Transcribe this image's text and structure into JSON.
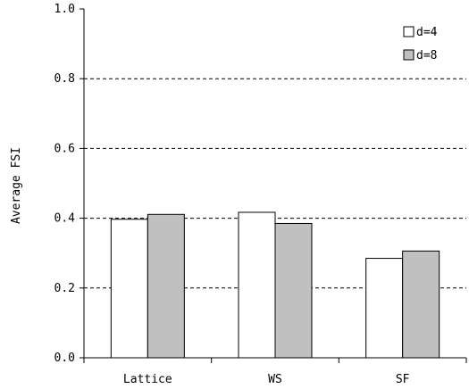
{
  "chart_data": {
    "type": "bar",
    "title": "",
    "xlabel": "",
    "ylabel": "Average FSI",
    "categories": [
      "Lattice",
      "WS",
      "SF"
    ],
    "series": [
      {
        "name": "d=4",
        "values": [
          0.397,
          0.417,
          0.285
        ],
        "color": "#ffffff"
      },
      {
        "name": "d=8",
        "values": [
          0.411,
          0.385,
          0.306
        ],
        "color": "#c0c0c0"
      }
    ],
    "ylim": [
      0.0,
      1.0
    ],
    "yticks": [
      0.0,
      0.2,
      0.4,
      0.6,
      0.8,
      1.0
    ],
    "ytick_labels": [
      "0.0",
      "0.2",
      "0.4",
      "0.6",
      "0.8",
      "1.0"
    ],
    "grid": "horizontal dashed",
    "legend_position": "top-right"
  }
}
